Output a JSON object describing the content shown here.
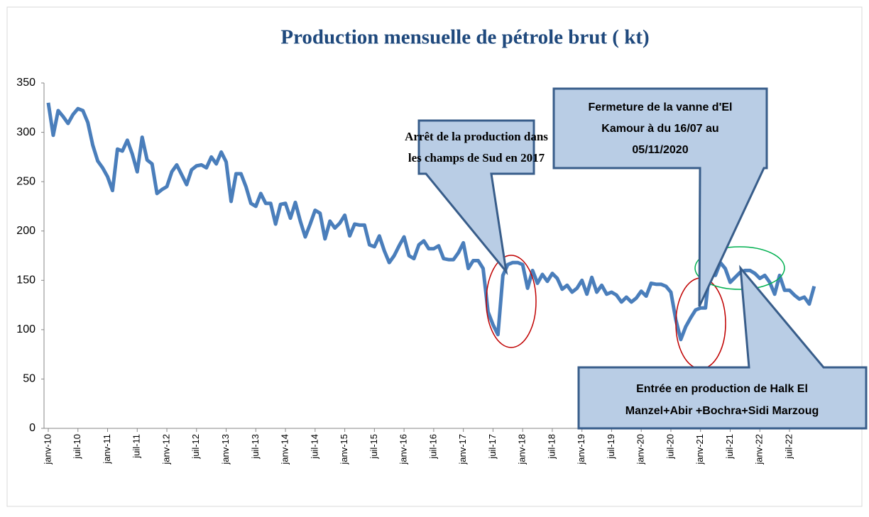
{
  "chart_data": {
    "type": "line",
    "title": "Production mensuelle de pétrole brut ( kt)",
    "categories": [
      "janv-10",
      null,
      null,
      null,
      null,
      null,
      "juil-10",
      null,
      null,
      null,
      null,
      null,
      "janv-11",
      null,
      null,
      null,
      null,
      null,
      "juil-11",
      null,
      null,
      null,
      null,
      null,
      "janv-12",
      null,
      null,
      null,
      null,
      null,
      "juil-12",
      null,
      null,
      null,
      null,
      null,
      "janv-13",
      null,
      null,
      null,
      null,
      null,
      "juil-13",
      null,
      null,
      null,
      null,
      null,
      "janv-14",
      null,
      null,
      null,
      null,
      null,
      "juil-14",
      null,
      null,
      null,
      null,
      null,
      "janv-15",
      null,
      null,
      null,
      null,
      null,
      "juil-15",
      null,
      null,
      null,
      null,
      null,
      "janv-16",
      null,
      null,
      null,
      null,
      null,
      "juil-16",
      null,
      null,
      null,
      null,
      null,
      "janv-17",
      null,
      null,
      null,
      null,
      null,
      "juil-17",
      null,
      null,
      null,
      null,
      null,
      "janv-18",
      null,
      null,
      null,
      null,
      null,
      "juil-18",
      null,
      null,
      null,
      null,
      null,
      "janv-19",
      null,
      null,
      null,
      null,
      null,
      "juil-19",
      null,
      null,
      null,
      null,
      null,
      "janv-20",
      null,
      null,
      null,
      null,
      null,
      "juil-20",
      null,
      null,
      null,
      null,
      null,
      "janv-21",
      null,
      null,
      null,
      null,
      null,
      "juil-21",
      null,
      null,
      null,
      null,
      null,
      "janv-22",
      null,
      null,
      null,
      null,
      null,
      "juil-22",
      null,
      null,
      null,
      null,
      null
    ],
    "values": [
      330,
      297,
      322,
      316,
      309,
      318,
      324,
      322,
      310,
      287,
      271,
      264,
      255,
      241,
      283,
      281,
      292,
      278,
      260,
      295,
      272,
      268,
      238,
      242,
      245,
      260,
      267,
      257,
      247,
      262,
      266,
      267,
      264,
      275,
      268,
      280,
      270,
      230,
      258,
      258,
      245,
      228,
      225,
      238,
      228,
      228,
      207,
      227,
      228,
      213,
      229,
      210,
      194,
      207,
      221,
      218,
      192,
      210,
      203,
      208,
      216,
      195,
      207,
      206,
      206,
      186,
      184,
      195,
      180,
      168,
      175,
      185,
      194,
      175,
      172,
      186,
      190,
      182,
      182,
      185,
      172,
      171,
      171,
      178,
      188,
      162,
      170,
      170,
      162,
      118,
      105,
      95,
      155,
      166,
      168,
      168,
      166,
      142,
      160,
      147,
      156,
      149,
      157,
      152,
      141,
      145,
      138,
      142,
      150,
      136,
      153,
      138,
      145,
      136,
      138,
      135,
      128,
      133,
      128,
      132,
      139,
      134,
      147,
      146,
      146,
      144,
      138,
      110,
      90,
      103,
      112,
      120,
      122,
      122,
      168,
      155,
      168,
      162,
      148,
      153,
      158,
      160,
      160,
      157,
      152,
      155,
      148,
      136,
      155,
      140,
      140,
      135,
      131,
      133,
      126,
      144
    ],
    "color": "#4a7ebb",
    "ylim": [
      0,
      350
    ],
    "yticks": [
      0,
      50,
      100,
      150,
      200,
      250,
      300,
      350
    ],
    "annotations": [
      {
        "lines": [
          "Arrêt de la production  dans",
          "les champs  de  Sud en 2017"
        ]
      },
      {
        "lines": [
          "Fermeture de la vanne d'El",
          "Kamour à du 16/07 au",
          "05/11/2020"
        ]
      },
      {
        "lines": [
          "Entrée en production  de Halk  El",
          "Manzel+Abir   +Bochra+Sidi  Marzoug"
        ]
      }
    ]
  }
}
